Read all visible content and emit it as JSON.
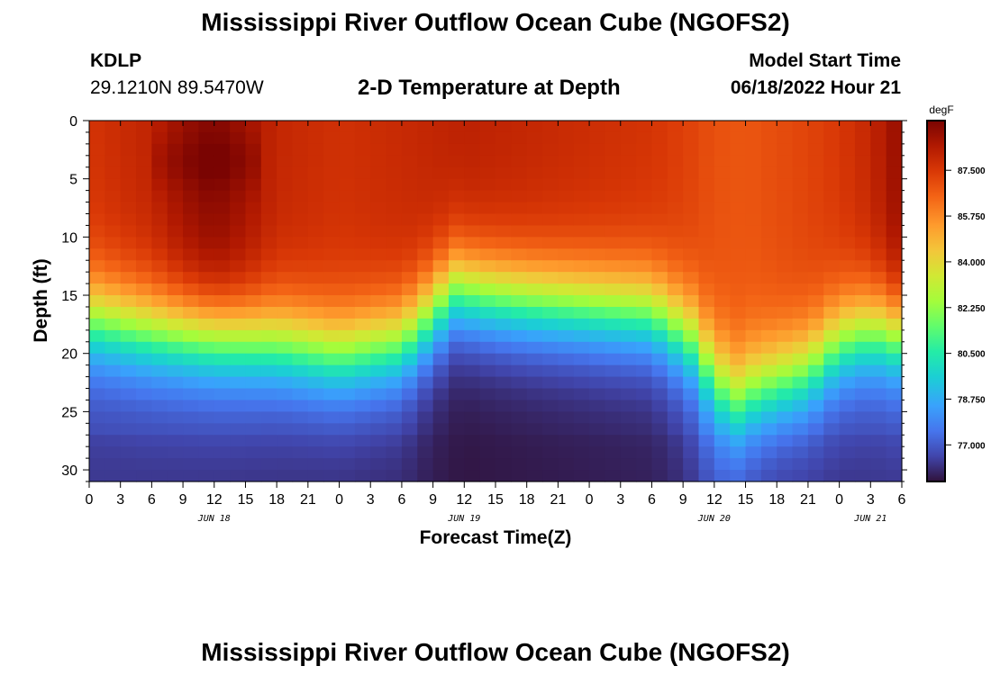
{
  "page": {
    "title": "Mississippi River Outflow Ocean Cube (NGOFS2)",
    "bottom_title": "Mississippi River Outflow Ocean Cube (NGOFS2)",
    "station": "KDLP",
    "coords": "29.1210N  89.5470W",
    "model_start_label": "Model Start Time",
    "model_start_value": "06/18/2022 Hour 21"
  },
  "chart_data": {
    "type": "heatmap",
    "title": "2-D Temperature at Depth",
    "xlabel": "Forecast Time(Z)",
    "ylabel": "Depth (ft)",
    "xlim": [
      0,
      78
    ],
    "ylim": [
      31,
      0
    ],
    "x_ticks": [
      0,
      3,
      6,
      9,
      12,
      15,
      18,
      21,
      24,
      27,
      30,
      33,
      36,
      39,
      42,
      45,
      48,
      51,
      54,
      57,
      60,
      63,
      66,
      69,
      72,
      75,
      78
    ],
    "x_tick_labels": [
      "0",
      "3",
      "6",
      "9",
      "12",
      "15",
      "18",
      "21",
      "0",
      "3",
      "6",
      "9",
      "12",
      "15",
      "18",
      "21",
      "0",
      "3",
      "6",
      "9",
      "12",
      "15",
      "18",
      "21",
      "0",
      "3",
      "6"
    ],
    "date_labels": [
      {
        "text": "JUN 18",
        "x": 12
      },
      {
        "text": "JUN 19",
        "x": 36
      },
      {
        "text": "JUN 20",
        "x": 60
      },
      {
        "text": "JUN 21",
        "x": 75
      }
    ],
    "y_ticks": [
      0,
      5,
      10,
      15,
      20,
      25,
      30
    ],
    "y_tick_labels": [
      "0",
      "5",
      "10",
      "15",
      "20",
      "25",
      "30"
    ],
    "colorbar": {
      "unit": "degF",
      "min": 75.6,
      "max": 89.4,
      "ticks": [
        87.5,
        85.75,
        84.0,
        82.25,
        80.5,
        78.75,
        77.0
      ],
      "tick_labels": [
        "87.500",
        "85.750",
        "84.000",
        "82.250",
        "80.500",
        "78.750",
        "77.000"
      ]
    },
    "mixed_layer_depth_ft": {
      "x": [
        0,
        6,
        12,
        18,
        24,
        30,
        33,
        35,
        38,
        42,
        48,
        54,
        58,
        60,
        62,
        64,
        66,
        69,
        72,
        75,
        78
      ],
      "depth": [
        17.0,
        18.0,
        18.5,
        19.0,
        20.0,
        19.0,
        16.5,
        14.5,
        15.0,
        15.5,
        16.0,
        16.5,
        19.0,
        22.0,
        24.0,
        23.0,
        22.5,
        21.5,
        19.0,
        18.0,
        18.5
      ]
    },
    "surface_temp_degF": {
      "x": [
        0,
        6,
        9,
        12,
        15,
        18,
        24,
        30,
        36,
        42,
        48,
        54,
        58,
        60,
        63,
        66,
        69,
        72,
        75,
        78
      ],
      "temp": [
        87.6,
        88.1,
        88.8,
        89.2,
        88.7,
        88.0,
        87.7,
        87.9,
        88.2,
        88.0,
        87.8,
        87.6,
        87.2,
        86.9,
        86.8,
        87.0,
        87.2,
        87.5,
        88.0,
        89.0
      ]
    },
    "bottom_temp_degF": {
      "x": [
        0,
        12,
        24,
        30,
        33,
        36,
        42,
        48,
        54,
        57,
        60,
        63,
        66,
        72,
        78
      ],
      "temp": [
        76.7,
        76.6,
        76.4,
        76.3,
        75.9,
        75.7,
        75.8,
        75.9,
        76.0,
        76.4,
        77.4,
        77.0,
        76.6,
        76.6,
        76.7
      ]
    }
  }
}
